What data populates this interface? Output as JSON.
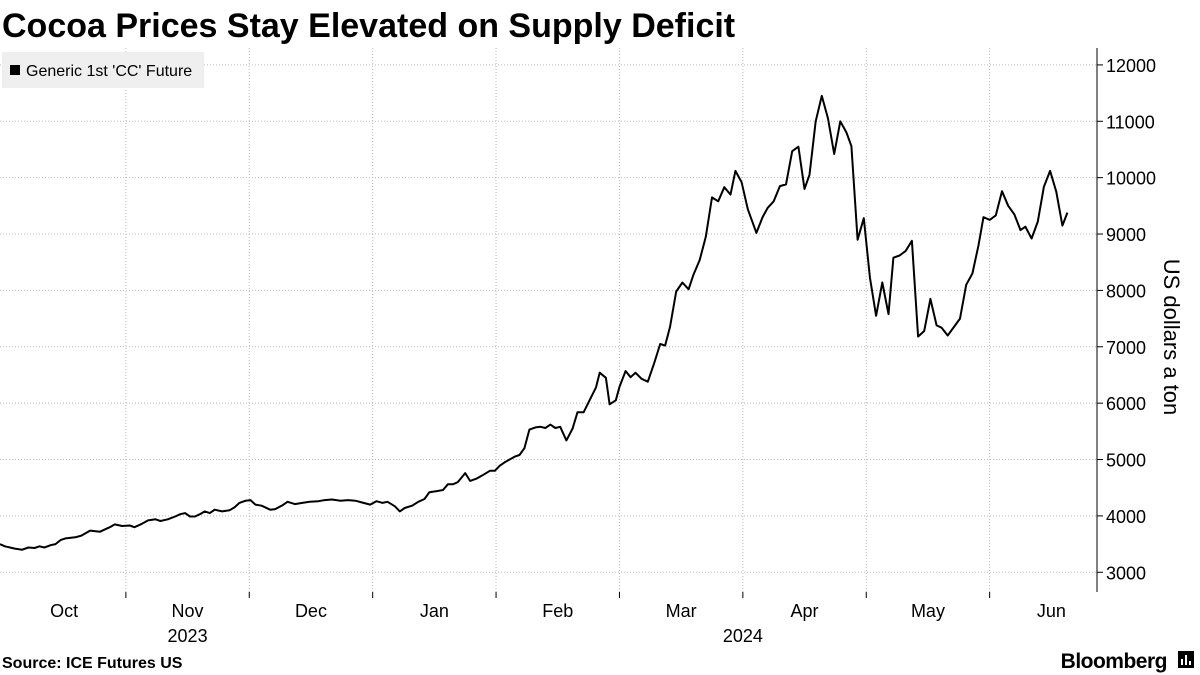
{
  "chart_data": {
    "type": "line",
    "title": "Cocoa Prices Stay Elevated on Supply Deficit",
    "y_axis_label": "US dollars a ton",
    "source": "Source: ICE Futures US",
    "brand": "Bloomberg",
    "legend": "top-left",
    "grid": true,
    "xlim": [
      -0.02,
      8.87
    ],
    "xticks": [
      {
        "value": 0.5,
        "label": "Oct"
      },
      {
        "value": 1.5,
        "label": "Nov"
      },
      {
        "value": 2.5,
        "label": "Dec"
      },
      {
        "value": 3.5,
        "label": "Jan"
      },
      {
        "value": 4.5,
        "label": "Feb"
      },
      {
        "value": 5.5,
        "label": "Mar"
      },
      {
        "value": 6.5,
        "label": "Apr"
      },
      {
        "value": 7.5,
        "label": "May"
      },
      {
        "value": 8.5,
        "label": "Jun"
      }
    ],
    "xgrid": [
      1,
      2,
      3,
      4,
      5,
      6,
      7,
      8
    ],
    "years": [
      {
        "value": 1.5,
        "label": "2023"
      },
      {
        "value": 6,
        "label": "2024"
      }
    ],
    "ylim": [
      2650,
      12300
    ],
    "yticks": [
      3000,
      4000,
      5000,
      6000,
      7000,
      8000,
      9000,
      10000,
      11000,
      12000
    ],
    "series": [
      {
        "name": "Generic 1st 'CC' Future",
        "color": "#000000",
        "x": [
          -0.02,
          0.02,
          0.1,
          0.16,
          0.21,
          0.26,
          0.3,
          0.34,
          0.39,
          0.43,
          0.47,
          0.51,
          0.59,
          0.64,
          0.71,
          0.79,
          0.87,
          0.91,
          0.97,
          1.03,
          1.07,
          1.13,
          1.18,
          1.24,
          1.28,
          1.34,
          1.4,
          1.44,
          1.48,
          1.52,
          1.56,
          1.6,
          1.64,
          1.68,
          1.72,
          1.78,
          1.84,
          1.88,
          1.92,
          1.97,
          2.01,
          2.05,
          2.1,
          2.17,
          2.21,
          2.27,
          2.31,
          2.37,
          2.43,
          2.49,
          2.56,
          2.61,
          2.67,
          2.74,
          2.8,
          2.86,
          2.91,
          2.98,
          3.03,
          3.08,
          3.12,
          3.18,
          3.22,
          3.26,
          3.32,
          3.37,
          3.42,
          3.46,
          3.52,
          3.57,
          3.61,
          3.65,
          3.69,
          3.75,
          3.79,
          3.84,
          3.89,
          3.95,
          3.99,
          4.03,
          4.07,
          4.11,
          4.15,
          4.19,
          4.23,
          4.27,
          4.32,
          4.36,
          4.4,
          4.44,
          4.48,
          4.52,
          4.57,
          4.62,
          4.66,
          4.71,
          4.76,
          4.81,
          4.84,
          4.89,
          4.92,
          4.97,
          5.0,
          5.05,
          5.09,
          5.13,
          5.18,
          5.23,
          5.28,
          5.33,
          5.37,
          5.41,
          5.46,
          5.51,
          5.56,
          5.6,
          5.65,
          5.7,
          5.75,
          5.8,
          5.85,
          5.9,
          5.94,
          5.99,
          6.04,
          6.11,
          6.16,
          6.2,
          6.25,
          6.3,
          6.35,
          6.4,
          6.45,
          6.5,
          6.54,
          6.59,
          6.64,
          6.69,
          6.74,
          6.79,
          6.84,
          6.88,
          6.93,
          6.98,
          7.03,
          7.08,
          7.13,
          7.18,
          7.22,
          7.27,
          7.32,
          7.37,
          7.42,
          7.47,
          7.52,
          7.57,
          7.61,
          7.66,
          7.71,
          7.76,
          7.81,
          7.86,
          7.91,
          7.95,
          8.0,
          8.05,
          8.1,
          8.15,
          8.2,
          8.25,
          8.29,
          8.34,
          8.39,
          8.44,
          8.49,
          8.54,
          8.59,
          8.63
        ],
        "values": [
          3500,
          3460,
          3420,
          3400,
          3440,
          3430,
          3460,
          3440,
          3480,
          3500,
          3570,
          3600,
          3620,
          3650,
          3740,
          3720,
          3800,
          3850,
          3820,
          3830,
          3800,
          3860,
          3920,
          3940,
          3910,
          3940,
          3990,
          4030,
          4050,
          3990,
          3990,
          4030,
          4080,
          4050,
          4110,
          4080,
          4100,
          4150,
          4230,
          4270,
          4280,
          4200,
          4180,
          4110,
          4120,
          4190,
          4250,
          4210,
          4230,
          4250,
          4260,
          4280,
          4290,
          4270,
          4280,
          4270,
          4240,
          4200,
          4260,
          4230,
          4250,
          4170,
          4080,
          4140,
          4180,
          4250,
          4300,
          4420,
          4440,
          4460,
          4560,
          4560,
          4600,
          4760,
          4620,
          4660,
          4720,
          4800,
          4800,
          4890,
          4950,
          5000,
          5050,
          5080,
          5200,
          5530,
          5570,
          5580,
          5560,
          5620,
          5560,
          5580,
          5340,
          5550,
          5840,
          5840,
          6060,
          6280,
          6540,
          6450,
          5980,
          6050,
          6290,
          6570,
          6460,
          6540,
          6430,
          6380,
          6700,
          7050,
          7020,
          7350,
          7980,
          8140,
          8020,
          8280,
          8540,
          8950,
          9650,
          9580,
          9830,
          9700,
          10120,
          9920,
          9440,
          9020,
          9300,
          9460,
          9580,
          9850,
          9880,
          10470,
          10550,
          9800,
          10050,
          11000,
          11450,
          11050,
          10420,
          11000,
          10800,
          10560,
          8900,
          9280,
          8230,
          7550,
          8140,
          7580,
          8580,
          8620,
          8700,
          8880,
          7180,
          7280,
          7850,
          7380,
          7340,
          7200,
          7350,
          7500,
          8100,
          8300,
          8800,
          9300,
          9250,
          9330,
          9760,
          9500,
          9350,
          9070,
          9130,
          8920,
          9220,
          9840,
          10120,
          9750,
          9150,
          9380
        ]
      }
    ]
  }
}
